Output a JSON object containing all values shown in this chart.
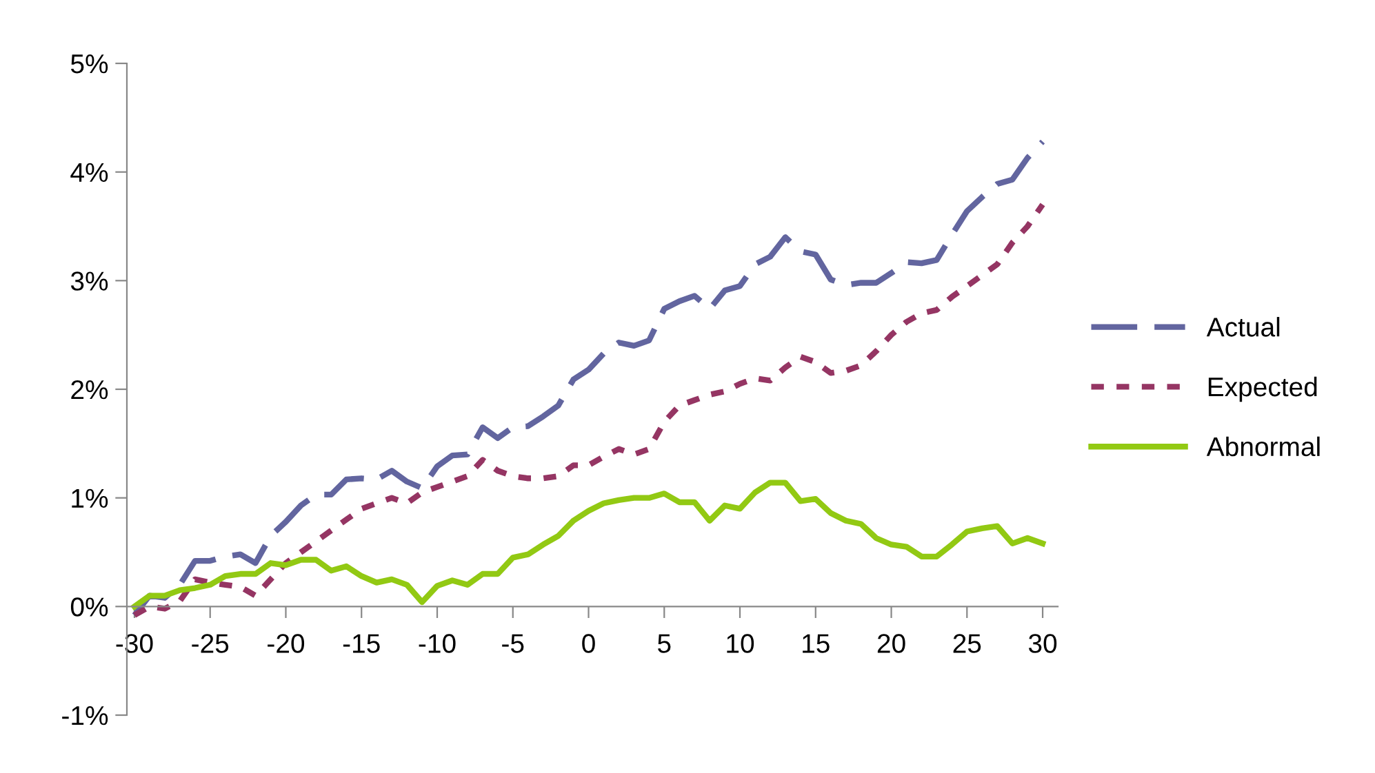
{
  "chart_data": {
    "type": "line",
    "x": [
      -30,
      -29,
      -28,
      -27,
      -26,
      -25,
      -24,
      -23,
      -22,
      -21,
      -20,
      -19,
      -18,
      -17,
      -16,
      -15,
      -14,
      -13,
      -12,
      -11,
      -10,
      -9,
      -8,
      -7,
      -6,
      -5,
      -4,
      -3,
      -2,
      -1,
      0,
      1,
      2,
      3,
      4,
      5,
      6,
      7,
      8,
      9,
      10,
      11,
      12,
      13,
      14,
      15,
      16,
      17,
      18,
      19,
      20,
      21,
      22,
      23,
      24,
      25,
      26,
      27,
      28,
      29,
      30
    ],
    "series": [
      {
        "name": "Actual",
        "color": "#62659f",
        "line_style": "dashed",
        "values": [
          -0.08,
          0.1,
          0.08,
          0.2,
          0.42,
          0.42,
          0.46,
          0.48,
          0.4,
          0.65,
          0.78,
          0.93,
          1.03,
          1.03,
          1.17,
          1.18,
          1.17,
          1.25,
          1.15,
          1.09,
          1.29,
          1.39,
          1.4,
          1.65,
          1.55,
          1.65,
          1.66,
          1.75,
          1.85,
          2.09,
          2.18,
          2.33,
          2.43,
          2.4,
          2.45,
          2.74,
          2.81,
          2.86,
          2.74,
          2.91,
          2.95,
          3.15,
          3.22,
          3.4,
          3.27,
          3.24,
          3.01,
          2.96,
          2.98,
          2.98,
          3.07,
          3.17,
          3.16,
          3.19,
          3.42,
          3.64,
          3.77,
          3.89,
          3.93,
          4.13,
          4.28
        ]
      },
      {
        "name": "Expected",
        "color": "#953563",
        "line_style": "dotted",
        "values": [
          -0.08,
          0.0,
          -0.02,
          0.05,
          0.25,
          0.22,
          0.2,
          0.18,
          0.1,
          0.25,
          0.4,
          0.5,
          0.6,
          0.7,
          0.8,
          0.9,
          0.95,
          1.0,
          0.95,
          1.05,
          1.1,
          1.15,
          1.2,
          1.35,
          1.25,
          1.2,
          1.18,
          1.18,
          1.2,
          1.3,
          1.3,
          1.38,
          1.45,
          1.4,
          1.45,
          1.7,
          1.85,
          1.9,
          1.95,
          1.98,
          2.05,
          2.1,
          2.08,
          2.2,
          2.3,
          2.25,
          2.15,
          2.17,
          2.22,
          2.35,
          2.5,
          2.62,
          2.7,
          2.73,
          2.85,
          2.95,
          3.05,
          3.15,
          3.35,
          3.5,
          3.7
        ]
      },
      {
        "name": "Abnormal",
        "color": "#92c913",
        "line_style": "solid",
        "values": [
          0,
          0.1,
          0.1,
          0.15,
          0.17,
          0.2,
          0.28,
          0.3,
          0.3,
          0.4,
          0.38,
          0.43,
          0.43,
          0.33,
          0.37,
          0.28,
          0.22,
          0.25,
          0.2,
          0.04,
          0.19,
          0.24,
          0.2,
          0.3,
          0.3,
          0.45,
          0.48,
          0.57,
          0.65,
          0.79,
          0.88,
          0.95,
          0.98,
          1.0,
          1.0,
          1.04,
          0.96,
          0.96,
          0.79,
          0.93,
          0.9,
          1.05,
          1.14,
          1.14,
          0.97,
          0.99,
          0.86,
          0.79,
          0.76,
          0.63,
          0.57,
          0.55,
          0.46,
          0.46,
          0.57,
          0.69,
          0.72,
          0.74,
          0.58,
          0.63,
          0.58
        ]
      }
    ],
    "xlim": [
      -30.5,
      31
    ],
    "xticks": [
      -30,
      -25,
      -20,
      -15,
      -10,
      -5,
      0,
      5,
      10,
      15,
      20,
      25,
      30
    ],
    "ylim": [
      -1,
      5
    ],
    "yticks": [
      {
        "value": -1,
        "label": "-1%"
      },
      {
        "value": 0,
        "label": "0%"
      },
      {
        "value": 1,
        "label": "1%"
      },
      {
        "value": 2,
        "label": "2%"
      },
      {
        "value": 3,
        "label": "3%"
      },
      {
        "value": 4,
        "label": "4%"
      },
      {
        "value": 5,
        "label": "5%"
      }
    ],
    "grid": false,
    "legend": "right",
    "marker": "none"
  }
}
